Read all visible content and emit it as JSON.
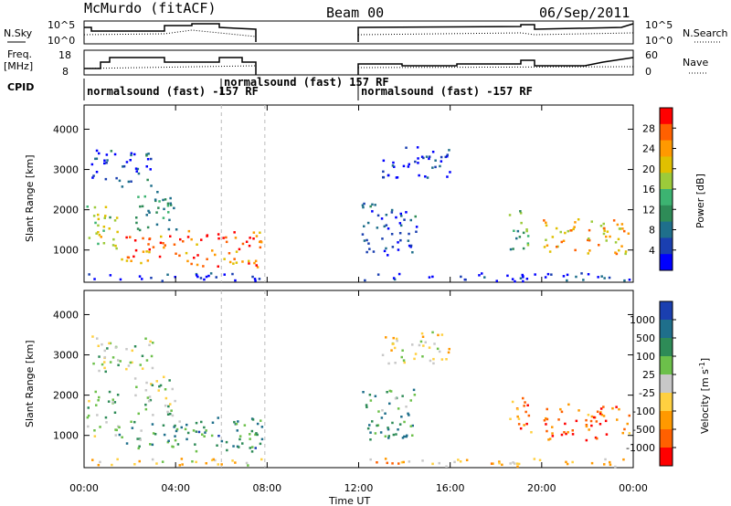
{
  "header": {
    "title_left": "McMurdo (fitACF)",
    "title_center": "Beam 00",
    "title_right": "06/Sep/2011"
  },
  "status_panels": {
    "nsky_label": "N.Sky",
    "nsky_ticks": [
      "10^5",
      "10^0"
    ],
    "nsearch_label": "N.Search",
    "nsearch_ticks": [
      "10^5",
      "10^0"
    ],
    "freq_label": "Freq.",
    "freq_unit": "[MHz]",
    "freq_ticks": [
      "18",
      "8"
    ],
    "nave_label": "Nave",
    "nave_ticks": [
      "60",
      "0"
    ],
    "cpid_label": "CPID",
    "cpid_segments": [
      {
        "text": "normalsound (fast) -157 RF"
      },
      {
        "text": "normalsound (fast) 157 RF"
      },
      {
        "text": "normalsound (fast) -157 RF"
      }
    ]
  },
  "chart_data": [
    {
      "type": "heatmap",
      "name": "power",
      "ylabel": "Slant Range [km]",
      "yticks": [
        "4000",
        "3000",
        "2000",
        "1000"
      ],
      "ylim": [
        200,
        4600
      ],
      "xlim": [
        0,
        24
      ],
      "xticks": [
        "00:00",
        "04:00",
        "08:00",
        "12:00",
        "16:00",
        "20:00",
        "00:00"
      ],
      "colorbar_label": "Power [dB]",
      "colorbar_ticks": [
        "28",
        "24",
        "20",
        "16",
        "12",
        "8",
        "4"
      ],
      "colorbar_colors": [
        "#ff0000",
        "#ff6000",
        "#ff9900",
        "#e0c000",
        "#9ccb3a",
        "#3cb371",
        "#2e8b57",
        "#1f6f8b",
        "#1a3fb0",
        "#0000ff"
      ],
      "gap_hours": [
        7.9,
        12.0
      ],
      "echo_regions": [
        {
          "t0": 0.1,
          "t1": 1.5,
          "r0": 1000,
          "r1": 2200,
          "level": 0.55
        },
        {
          "t0": 0.3,
          "t1": 3.0,
          "r0": 2600,
          "r1": 3500,
          "level": 0.15
        },
        {
          "t0": 1.5,
          "t1": 4.5,
          "r0": 700,
          "r1": 1400,
          "level": 0.8
        },
        {
          "t0": 4.5,
          "t1": 7.8,
          "r0": 600,
          "r1": 1500,
          "level": 0.85
        },
        {
          "t0": 2.0,
          "t1": 4.0,
          "r0": 1500,
          "r1": 2500,
          "level": 0.35
        },
        {
          "t0": 0.0,
          "t1": 7.8,
          "r0": 250,
          "r1": 450,
          "level": 0.1
        },
        {
          "t0": 12.1,
          "t1": 14.5,
          "r0": 900,
          "r1": 2200,
          "level": 0.15
        },
        {
          "t0": 13.0,
          "t1": 16.0,
          "r0": 2800,
          "r1": 3600,
          "level": 0.1
        },
        {
          "t0": 20.0,
          "t1": 23.8,
          "r0": 900,
          "r1": 1800,
          "level": 0.7
        },
        {
          "t0": 18.5,
          "t1": 19.5,
          "r0": 1000,
          "r1": 2000,
          "level": 0.4
        },
        {
          "t0": 12.0,
          "t1": 24.0,
          "r0": 250,
          "r1": 450,
          "level": 0.1
        }
      ]
    },
    {
      "type": "heatmap",
      "name": "velocity",
      "ylabel": "Slant Range [km]",
      "yticks": [
        "4000",
        "3000",
        "2000",
        "1000"
      ],
      "ylim": [
        200,
        4600
      ],
      "xlim": [
        0,
        24
      ],
      "xticks": [
        "00:00",
        "04:00",
        "08:00",
        "12:00",
        "16:00",
        "20:00",
        "00:00"
      ],
      "xlabel": "Time UT",
      "colorbar_label": "Velocity [m s",
      "colorbar_label_sup": "-1",
      "colorbar_ticks": [
        "1000",
        "500",
        "100",
        "25",
        "-25",
        "-100",
        "-500",
        "-1000"
      ],
      "colorbar_colors": [
        "#1a3fb0",
        "#1f6f8b",
        "#2e8b57",
        "#6cc04a",
        "#c8c8c8",
        "#ffd040",
        "#ff9900",
        "#ff6000",
        "#ff0000"
      ],
      "gap_hours": [
        7.9,
        12.0
      ],
      "echo_regions": [
        {
          "t0": 0.1,
          "t1": 1.5,
          "r0": 1000,
          "r1": 2200,
          "level": 0.4
        },
        {
          "t0": 0.3,
          "t1": 3.0,
          "r0": 2600,
          "r1": 3500,
          "level": 0.45
        },
        {
          "t0": 1.5,
          "t1": 4.5,
          "r0": 700,
          "r1": 1400,
          "level": 0.3
        },
        {
          "t0": 4.5,
          "t1": 7.8,
          "r0": 600,
          "r1": 1500,
          "level": 0.25
        },
        {
          "t0": 2.0,
          "t1": 4.0,
          "r0": 1500,
          "r1": 2500,
          "level": 0.45
        },
        {
          "t0": 0.0,
          "t1": 7.8,
          "r0": 250,
          "r1": 450,
          "level": 0.6
        },
        {
          "t0": 12.1,
          "t1": 14.5,
          "r0": 900,
          "r1": 2200,
          "level": 0.3
        },
        {
          "t0": 13.0,
          "t1": 16.0,
          "r0": 2800,
          "r1": 3600,
          "level": 0.55
        },
        {
          "t0": 20.0,
          "t1": 23.8,
          "r0": 900,
          "r1": 1800,
          "level": 0.8
        },
        {
          "t0": 18.5,
          "t1": 19.5,
          "r0": 1000,
          "r1": 2000,
          "level": 0.75
        },
        {
          "t0": 12.0,
          "t1": 24.0,
          "r0": 250,
          "r1": 450,
          "level": 0.65
        }
      ]
    }
  ]
}
